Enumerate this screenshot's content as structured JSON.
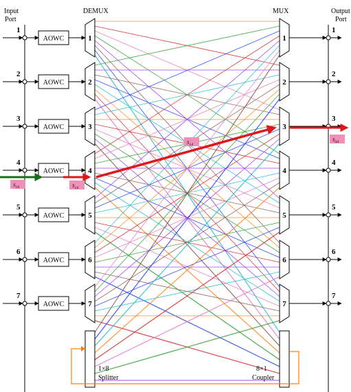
{
  "labels": {
    "input_port": [
      "Input",
      "Port"
    ],
    "output_port": [
      "Output",
      "Port"
    ],
    "demux": "DEMUX",
    "mux": "MUX",
    "splitter": [
      "1×8",
      "Splitter"
    ],
    "coupler": [
      "8×1",
      "Coupler"
    ]
  },
  "ports": [
    "1",
    "2",
    "3",
    "4",
    "5",
    "6",
    "7"
  ],
  "aowc_label": "AOWC",
  "signal_labels": {
    "input": "S",
    "input_sub": "14",
    "demux_out": "S",
    "demux_out_sub": "14",
    "middle": "S",
    "middle_sub": "14",
    "output": "S",
    "output_sub": "34"
  },
  "colors": {
    "wavelengths": [
      "#ff7f0e",
      "#2ca02c",
      "#1f3fff",
      "#d62728",
      "#9b30ff",
      "#17becf",
      "#e377c2",
      "#8c564b"
    ],
    "highlight": "#e0171a",
    "input_arrow": "#1a6e1a",
    "loop": "#ff7f0e"
  }
}
